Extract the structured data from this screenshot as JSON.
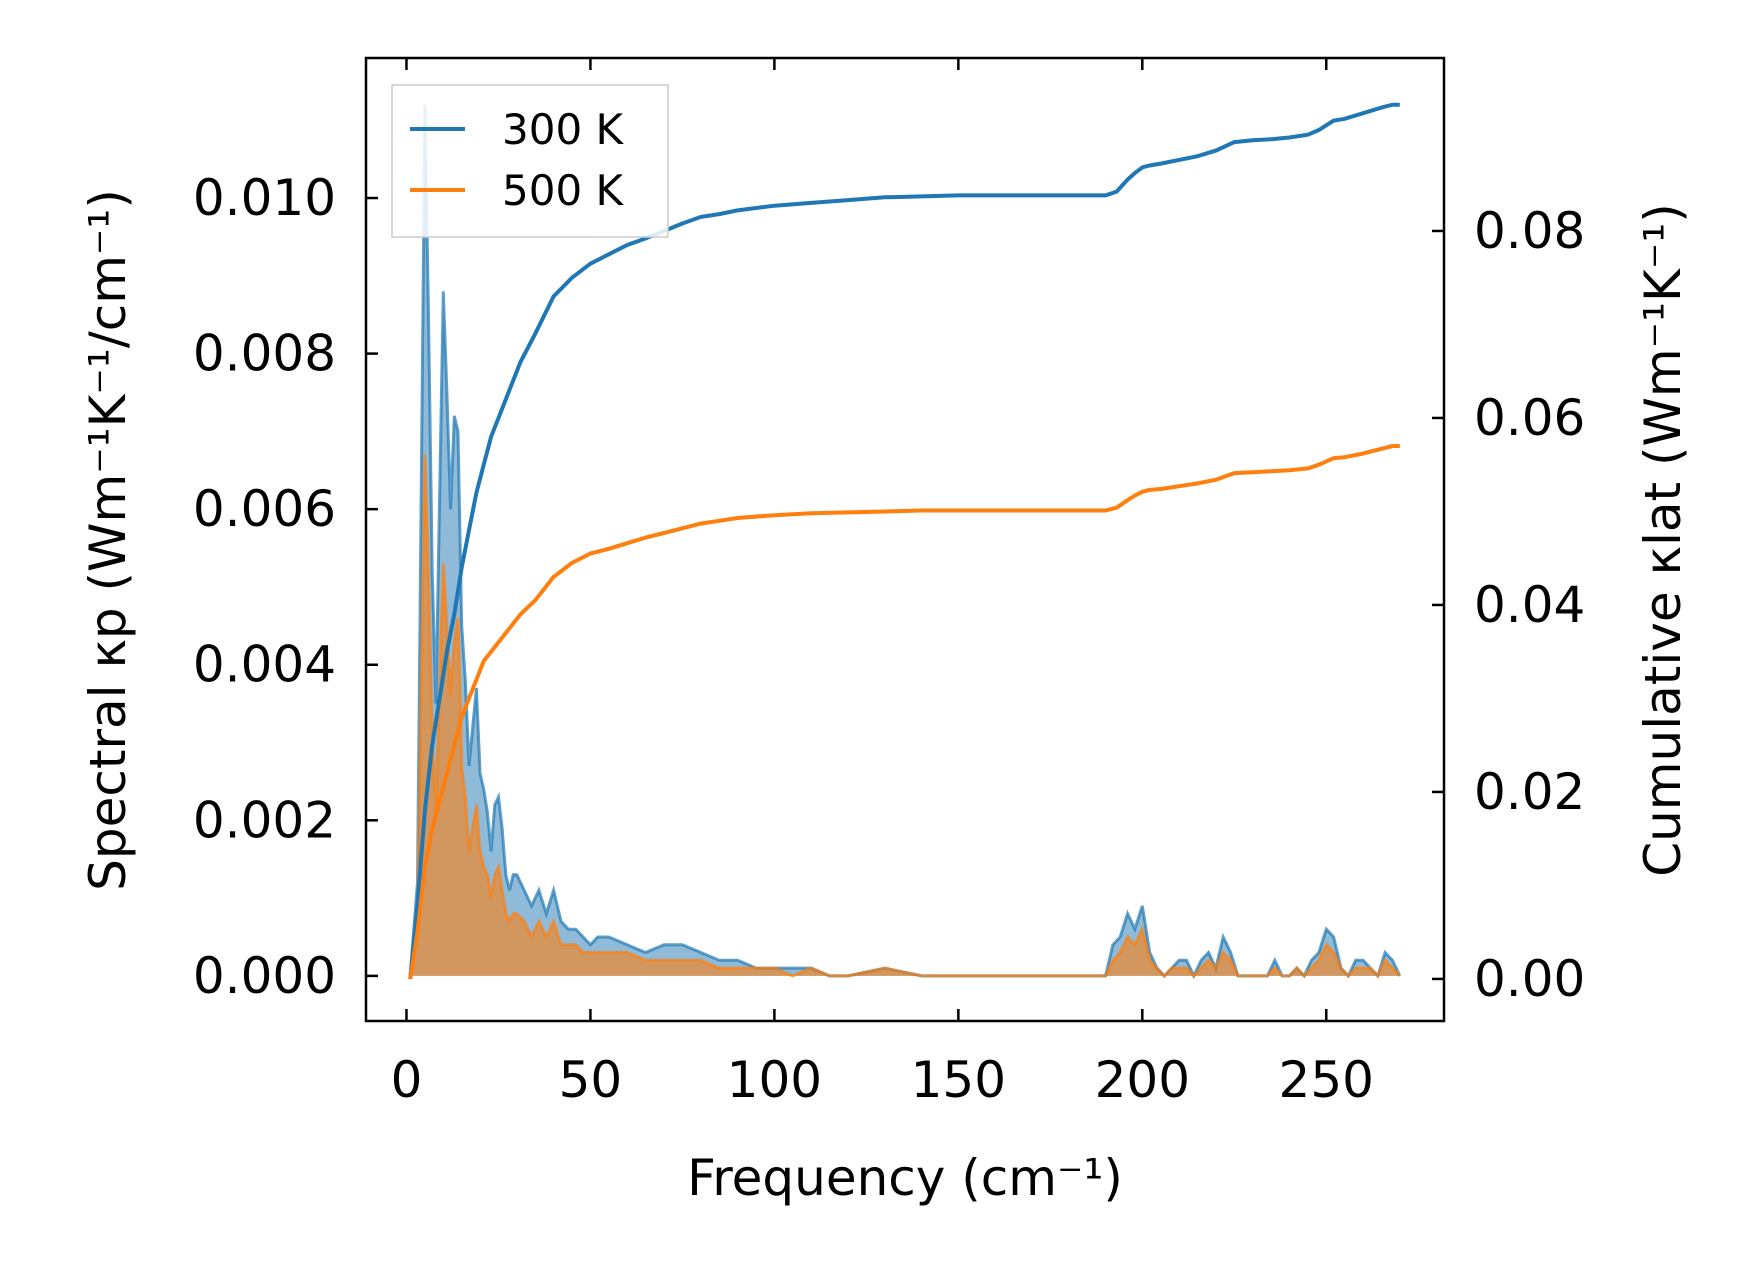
{
  "chart_data": {
    "type": "line",
    "title": "",
    "xlabel": "Frequency (cm⁻¹)",
    "ylabel_left": "Spectral κp (Wm⁻¹K⁻¹/cm⁻¹)",
    "ylabel_right": "Cumulative κlat (Wm⁻¹K⁻¹)",
    "xlim": [
      -11,
      282
    ],
    "ylim_left": [
      -0.00058,
      0.0118
    ],
    "ylim_right": [
      -0.0045,
      0.0985
    ],
    "x_ticks": [
      "0",
      "50",
      "100",
      "150",
      "200",
      "250"
    ],
    "y_left_ticks": [
      "0.000",
      "0.002",
      "0.004",
      "0.006",
      "0.008",
      "0.010"
    ],
    "y_right_ticks": [
      "0.00",
      "0.02",
      "0.04",
      "0.06",
      "0.08"
    ],
    "legend": {
      "location": "top-left",
      "entries": [
        "300 K",
        "500 K"
      ]
    },
    "colors": {
      "series_300": "#1f77b4",
      "series_500": "#ff7f0e"
    },
    "spectral": {
      "x": [
        1,
        3,
        5,
        6,
        7,
        8,
        10,
        11,
        12,
        13,
        14,
        15,
        16,
        17,
        18,
        19,
        20,
        21,
        22,
        23,
        24,
        25,
        26,
        27,
        28,
        29,
        30,
        32,
        34,
        36,
        38,
        40,
        42,
        44,
        46,
        48,
        50,
        52,
        55,
        60,
        65,
        70,
        75,
        80,
        85,
        90,
        95,
        100,
        105,
        110,
        115,
        120,
        130,
        140,
        150,
        160,
        170,
        180,
        190,
        192,
        194,
        196,
        198,
        200,
        202,
        204,
        206,
        208,
        210,
        212,
        214,
        216,
        218,
        220,
        222,
        224,
        226,
        228,
        230,
        232,
        234,
        236,
        238,
        240,
        242,
        244,
        246,
        248,
        250,
        252,
        254,
        256,
        258,
        260,
        262,
        264,
        266,
        268,
        270
      ],
      "series": [
        {
          "name": "300 K",
          "values": [
            0.0,
            0.0012,
            0.0112,
            0.0085,
            0.0052,
            0.0035,
            0.0088,
            0.0075,
            0.006,
            0.0072,
            0.007,
            0.0045,
            0.0038,
            0.0027,
            0.0032,
            0.0037,
            0.0026,
            0.0024,
            0.0021,
            0.0016,
            0.0022,
            0.0023,
            0.0019,
            0.0013,
            0.0011,
            0.0013,
            0.0013,
            0.0011,
            0.0009,
            0.0011,
            0.0008,
            0.0011,
            0.0007,
            0.0006,
            0.0006,
            0.0005,
            0.0004,
            0.0005,
            0.0005,
            0.0004,
            0.0003,
            0.0004,
            0.0004,
            0.0003,
            0.0002,
            0.0002,
            0.0001,
            0.0001,
            0.0001,
            0.0001,
            0.0,
            0.0,
            0.0001,
            0.0,
            0.0,
            0.0,
            0.0,
            0.0,
            0.0,
            0.0004,
            0.0005,
            0.0008,
            0.0006,
            0.0009,
            0.0003,
            0.0001,
            0.0,
            0.0001,
            0.0002,
            0.0002,
            0.0,
            0.0002,
            0.0003,
            0.0001,
            0.0005,
            0.0003,
            0.0,
            0.0,
            0.0,
            0.0,
            0.0,
            0.0002,
            0.0,
            0.0,
            0.0001,
            0.0,
            0.0002,
            0.0003,
            0.0006,
            0.0005,
            0.0001,
            0.0,
            0.0002,
            0.0002,
            0.0001,
            0.0,
            0.0003,
            0.0002,
            0.0
          ]
        },
        {
          "name": "500 K",
          "values": [
            0.0,
            0.0008,
            0.0067,
            0.0051,
            0.0031,
            0.0021,
            0.0053,
            0.0045,
            0.0036,
            0.0043,
            0.0046,
            0.0027,
            0.0023,
            0.0016,
            0.0019,
            0.0022,
            0.0016,
            0.0014,
            0.0013,
            0.001,
            0.0013,
            0.0014,
            0.0011,
            0.0008,
            0.0007,
            0.0008,
            0.0008,
            0.0007,
            0.0005,
            0.0007,
            0.0005,
            0.0007,
            0.0004,
            0.0004,
            0.0004,
            0.0003,
            0.0003,
            0.0003,
            0.0003,
            0.0003,
            0.0002,
            0.0002,
            0.0002,
            0.0002,
            0.0001,
            0.0001,
            0.0001,
            0.0001,
            0.0,
            0.0001,
            0.0,
            0.0,
            0.0001,
            0.0,
            0.0,
            0.0,
            0.0,
            0.0,
            0.0,
            0.0002,
            0.0003,
            0.0005,
            0.0004,
            0.0006,
            0.0002,
            0.0001,
            0.0,
            0.0001,
            0.0001,
            0.0001,
            0.0,
            0.0001,
            0.0002,
            0.0001,
            0.0003,
            0.0002,
            0.0,
            0.0,
            0.0,
            0.0,
            0.0,
            0.0001,
            0.0,
            0.0,
            0.0001,
            0.0,
            0.0001,
            0.0002,
            0.0004,
            0.0003,
            0.0001,
            0.0,
            0.0001,
            0.0001,
            0.0001,
            0.0,
            0.0002,
            0.0001,
            0.0
          ]
        }
      ]
    },
    "cumulative": {
      "x": [
        1,
        3,
        5,
        7,
        9,
        11,
        13,
        15,
        17,
        19,
        21,
        23,
        25,
        28,
        31,
        35,
        40,
        45,
        50,
        55,
        60,
        65,
        70,
        75,
        80,
        85,
        90,
        100,
        110,
        120,
        130,
        140,
        150,
        160,
        170,
        180,
        190,
        193,
        196,
        198,
        200,
        202,
        205,
        210,
        215,
        220,
        225,
        230,
        235,
        240,
        245,
        248,
        252,
        255,
        260,
        265,
        268,
        270
      ],
      "series": [
        {
          "name": "300 K",
          "values": [
            0.0,
            0.008,
            0.018,
            0.025,
            0.03,
            0.035,
            0.039,
            0.044,
            0.048,
            0.052,
            0.055,
            0.058,
            0.06,
            0.063,
            0.066,
            0.069,
            0.073,
            0.075,
            0.0765,
            0.0775,
            0.0785,
            0.0792,
            0.08,
            0.0808,
            0.0815,
            0.0818,
            0.0822,
            0.0827,
            0.083,
            0.0833,
            0.0836,
            0.0837,
            0.0838,
            0.0838,
            0.0838,
            0.0838,
            0.0838,
            0.0842,
            0.0855,
            0.0862,
            0.0868,
            0.087,
            0.0872,
            0.0876,
            0.088,
            0.0886,
            0.0895,
            0.0897,
            0.0898,
            0.09,
            0.0903,
            0.0908,
            0.0918,
            0.092,
            0.0926,
            0.0932,
            0.0935,
            0.0935
          ]
        },
        {
          "name": "500 K",
          "values": [
            0.0,
            0.005,
            0.012,
            0.016,
            0.019,
            0.022,
            0.025,
            0.028,
            0.03,
            0.032,
            0.034,
            0.035,
            0.036,
            0.0375,
            0.039,
            0.0405,
            0.043,
            0.0445,
            0.0455,
            0.046,
            0.0466,
            0.0472,
            0.0477,
            0.0482,
            0.0487,
            0.049,
            0.0493,
            0.0496,
            0.0498,
            0.0499,
            0.05,
            0.0501,
            0.0501,
            0.0501,
            0.0501,
            0.0501,
            0.0501,
            0.0504,
            0.0512,
            0.0517,
            0.0521,
            0.0523,
            0.0524,
            0.0527,
            0.053,
            0.0534,
            0.0541,
            0.0542,
            0.0543,
            0.0544,
            0.0546,
            0.055,
            0.0557,
            0.0558,
            0.0562,
            0.0567,
            0.057,
            0.057
          ]
        }
      ]
    }
  }
}
